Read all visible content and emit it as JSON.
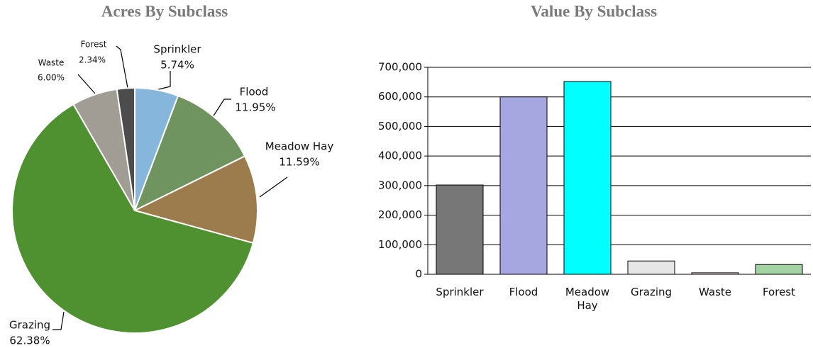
{
  "chart_data": [
    {
      "type": "pie",
      "title": "Acres By Subclass",
      "categories": [
        "Sprinkler",
        "Flood",
        "Meadow Hay",
        "Grazing",
        "Waste",
        "Forest"
      ],
      "values": [
        5.74,
        11.95,
        11.59,
        62.38,
        6.0,
        2.34
      ],
      "value_labels": [
        "5.74%",
        "11.95%",
        "11.59%",
        "62.38%",
        "6.00%",
        "2.34%"
      ],
      "colors": [
        "#86b6dc",
        "#6f9460",
        "#9c7c4c",
        "#4f9130",
        "#a19d95",
        "#4c4c4c"
      ]
    },
    {
      "type": "bar",
      "title": "Value By Subclass",
      "categories": [
        "Sprinkler",
        "Flood",
        "Meadow Hay",
        "Grazing",
        "Waste",
        "Forest"
      ],
      "values": [
        302000,
        600000,
        652000,
        45000,
        5000,
        33000
      ],
      "colors": [
        "#777777",
        "#a6a6e0",
        "#00ffff",
        "#e6e6e6",
        "#f2e4e4",
        "#a3d2a3"
      ],
      "ylim": [
        0,
        700000
      ],
      "yticks": [
        0,
        {
          "value": 100000,
          "label": "100,000"
        },
        {
          "value": 200000,
          "label": "200,000"
        },
        {
          "value": 300000,
          "label": "300,000"
        },
        {
          "value": 400000,
          "label": "400,000"
        },
        {
          "value": 500000,
          "label": "500,000"
        },
        {
          "value": 600000,
          "label": "600,000"
        },
        {
          "value": 700000,
          "label": "700,000"
        }
      ],
      "grid": true
    }
  ]
}
